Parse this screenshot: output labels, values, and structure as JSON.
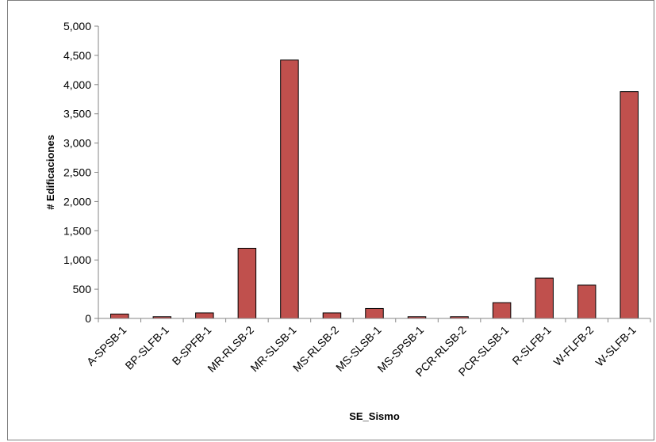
{
  "chart_data": {
    "type": "bar",
    "categories": [
      "A-SPSB-1",
      "BP-SLFB-1",
      "B-SPFB-1",
      "MR-RLSB-2",
      "MR-SLSB-1",
      "MS-RLSB-2",
      "MS-SLSB-1",
      "MS-SPSB-1",
      "PCR-RLSB-2",
      "PCR-SLSB-1",
      "R-SLFB-1",
      "W-FLFB-2",
      "W-SLFB-1"
    ],
    "values": [
      75,
      30,
      95,
      1200,
      4420,
      95,
      170,
      30,
      30,
      270,
      690,
      570,
      3880
    ],
    "xlabel": "SE_Sismo",
    "ylabel": "# Edificaciones",
    "ylim": [
      0,
      5000
    ],
    "yticks": [
      "0",
      "500",
      "1,000",
      "1,500",
      "2,000",
      "2,500",
      "3,000",
      "3,500",
      "4,000",
      "4,500",
      "5,000"
    ],
    "ytick_values": [
      0,
      500,
      1000,
      1500,
      2000,
      2500,
      3000,
      3500,
      4000,
      4500,
      5000
    ],
    "bar_color": "#c0504d",
    "bar_edge_color": "#000000",
    "grid": false,
    "legend": "none"
  }
}
